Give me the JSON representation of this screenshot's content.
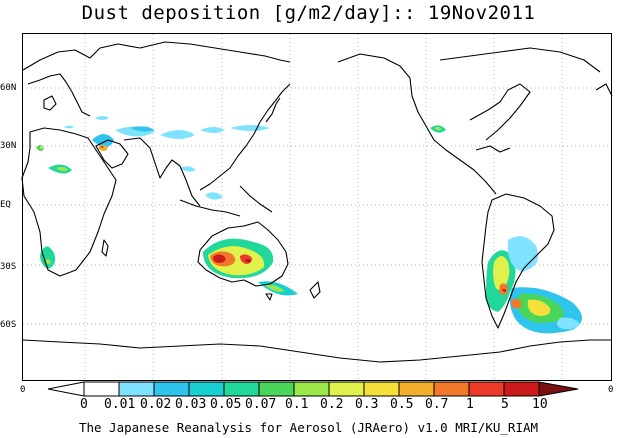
{
  "title": "Dust deposition [g/m2/day]:: 19Nov2011",
  "credit": "The Japanese Reanalysis for Aerosol (JRAero) v1.0 MRI/KU_RIAM",
  "lat_ticks": [
    "60N",
    "30N",
    "EQ",
    "30S",
    "60S"
  ],
  "axis_zero_left": "0",
  "axis_zero_right": "0",
  "colorbar": {
    "labels": [
      "0",
      "0.01",
      "0.02",
      "0.03",
      "0.05",
      "0.07",
      "0.1",
      "0.2",
      "0.3",
      "0.5",
      "0.7",
      "1",
      "5",
      "10"
    ],
    "colors": [
      "#ffffff",
      "#7fe3ff",
      "#2fc4ec",
      "#17cfd0",
      "#22d79a",
      "#4ad65a",
      "#9ce84a",
      "#dff14a",
      "#f5df3a",
      "#f3ae2a",
      "#f2782a",
      "#ee3a28",
      "#cc1a1a",
      "#a0101a",
      "#7a1010"
    ]
  }
}
